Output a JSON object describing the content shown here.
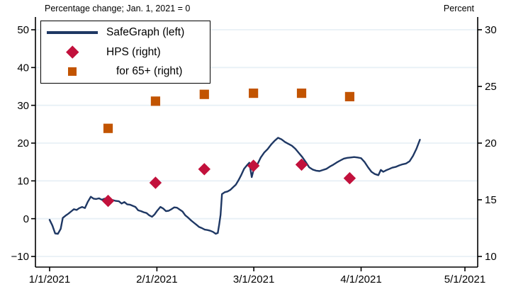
{
  "chart": {
    "title": "Percentage change; Jan. 1, 2021 = 0",
    "right_axis_title": "Percent",
    "colors": {
      "safegraph_line": "#1f3864",
      "hps_diamond": "#c2113c",
      "age65_square": "#c25400",
      "grid": "#e8f0f6",
      "axis": "#000000"
    },
    "legend": {
      "items": [
        {
          "label": "SafeGraph (left)",
          "marker": "line"
        },
        {
          "label": "HPS (right)",
          "marker": "diamond"
        },
        {
          "label": "for 65+ (right)",
          "marker": "square"
        }
      ]
    }
  },
  "chart_data": {
    "type": "line",
    "title": "Percentage change; Jan. 1, 2021 = 0",
    "right_axis_title": "Percent",
    "x_axis": {
      "tick_labels": [
        "1/1/2021",
        "2/1/2021",
        "3/1/2021",
        "4/1/2021",
        "5/1/2021"
      ],
      "tick_days": [
        0,
        31,
        59,
        90,
        120
      ],
      "note": "day index measured from Jan 1, 2021"
    },
    "left_axis": {
      "ticks": [
        50,
        40,
        30,
        20,
        10,
        0,
        -10
      ],
      "min": -10,
      "max": 50
    },
    "right_axis": {
      "ticks": [
        30,
        25,
        20,
        15,
        10
      ],
      "min": 10,
      "max": 30
    },
    "grid": true,
    "legend_position": "top-left-inside",
    "series": [
      {
        "name": "SafeGraph (left)",
        "axis": "left",
        "type": "line",
        "color_key": "safegraph_line",
        "points": [
          [
            0,
            -0.3
          ],
          [
            0.8,
            -1.8
          ],
          [
            1.6,
            -3.9
          ],
          [
            2.4,
            -4.0
          ],
          [
            3.2,
            -2.7
          ],
          [
            3.8,
            0.2
          ],
          [
            4.6,
            0.8
          ],
          [
            5.4,
            1.3
          ],
          [
            6.2,
            1.9
          ],
          [
            7,
            2.5
          ],
          [
            7.8,
            2.3
          ],
          [
            8.6,
            2.8
          ],
          [
            9.4,
            3.1
          ],
          [
            10.2,
            2.8
          ],
          [
            11,
            4.4
          ],
          [
            11.9,
            5.8
          ],
          [
            12.7,
            5.3
          ],
          [
            13.5,
            5.2
          ],
          [
            14.3,
            5.4
          ],
          [
            15.1,
            5.0
          ],
          [
            15.9,
            5.3
          ],
          [
            16.7,
            4.7
          ],
          [
            17.5,
            5.1
          ],
          [
            18.3,
            4.9
          ],
          [
            19.1,
            4.7
          ],
          [
            20,
            4.6
          ],
          [
            20.8,
            4.0
          ],
          [
            21.6,
            4.4
          ],
          [
            22.4,
            3.8
          ],
          [
            23.2,
            3.7
          ],
          [
            24,
            3.4
          ],
          [
            24.8,
            3.1
          ],
          [
            25.6,
            2.2
          ],
          [
            26.4,
            2.0
          ],
          [
            27.2,
            1.7
          ],
          [
            28,
            1.5
          ],
          [
            28.8,
            0.9
          ],
          [
            29.6,
            0.5
          ],
          [
            30.3,
            1.1
          ],
          [
            31,
            2.0
          ],
          [
            32,
            3.1
          ],
          [
            32.8,
            2.7
          ],
          [
            33.6,
            2.0
          ],
          [
            34.4,
            2.1
          ],
          [
            35.2,
            2.5
          ],
          [
            36,
            3.0
          ],
          [
            36.8,
            2.9
          ],
          [
            37.6,
            2.4
          ],
          [
            38.4,
            1.9
          ],
          [
            39.2,
            0.9
          ],
          [
            40,
            0.3
          ],
          [
            40.8,
            -0.4
          ],
          [
            41.6,
            -1.0
          ],
          [
            42.4,
            -1.6
          ],
          [
            43.2,
            -2.2
          ],
          [
            44,
            -2.5
          ],
          [
            44.8,
            -2.9
          ],
          [
            45.6,
            -3.0
          ],
          [
            46.4,
            -3.2
          ],
          [
            47.2,
            -3.5
          ],
          [
            48,
            -4.0
          ],
          [
            48.6,
            -3.8
          ],
          [
            49,
            -1.5
          ],
          [
            49.4,
            1.0
          ],
          [
            49.8,
            6.5
          ],
          [
            50.6,
            7.0
          ],
          [
            51.4,
            7.2
          ],
          [
            52.2,
            7.6
          ],
          [
            53,
            8.3
          ],
          [
            53.8,
            9.0
          ],
          [
            54.6,
            10.2
          ],
          [
            55.4,
            11.6
          ],
          [
            56.2,
            13.2
          ],
          [
            57,
            14.1
          ],
          [
            57.7,
            14.8
          ],
          [
            58.4,
            11.0
          ],
          [
            59.1,
            13.5
          ],
          [
            60,
            14.3
          ],
          [
            61,
            16.2
          ],
          [
            62,
            17.5
          ],
          [
            63,
            18.4
          ],
          [
            64,
            19.6
          ],
          [
            65,
            20.6
          ],
          [
            66,
            21.4
          ],
          [
            67,
            21.0
          ],
          [
            68,
            20.3
          ],
          [
            69,
            19.8
          ],
          [
            70,
            19.3
          ],
          [
            71,
            18.5
          ],
          [
            72,
            17.4
          ],
          [
            73,
            16.3
          ],
          [
            74,
            15.0
          ],
          [
            75,
            13.6
          ],
          [
            76,
            13.0
          ],
          [
            77,
            12.7
          ],
          [
            78,
            12.6
          ],
          [
            79,
            12.9
          ],
          [
            80,
            13.2
          ],
          [
            81,
            13.8
          ],
          [
            82,
            14.3
          ],
          [
            83,
            14.9
          ],
          [
            84,
            15.4
          ],
          [
            85,
            15.9
          ],
          [
            86,
            16.1
          ],
          [
            87,
            16.2
          ],
          [
            88,
            16.3
          ],
          [
            89,
            16.2
          ],
          [
            90,
            16.0
          ],
          [
            91,
            15.0
          ],
          [
            92,
            13.6
          ],
          [
            93,
            12.4
          ],
          [
            94,
            11.8
          ],
          [
            95,
            11.5
          ],
          [
            95.7,
            12.9
          ],
          [
            96.4,
            12.4
          ],
          [
            97.2,
            12.8
          ],
          [
            98,
            13.1
          ],
          [
            99,
            13.5
          ],
          [
            100,
            13.7
          ],
          [
            101,
            14.1
          ],
          [
            102,
            14.4
          ],
          [
            103,
            14.6
          ],
          [
            104,
            15.2
          ],
          [
            105,
            16.6
          ],
          [
            106,
            18.5
          ],
          [
            107,
            20.9
          ]
        ]
      },
      {
        "name": "HPS (right)",
        "axis": "right",
        "type": "scatter-diamond",
        "color_key": "hps_diamond",
        "dates": [
          "1/18",
          "2/1",
          "2/15",
          "3/1",
          "3/15",
          "3/29"
        ],
        "points": [
          [
            16.9,
            14.9
          ],
          [
            30.6,
            16.5
          ],
          [
            44.7,
            17.7
          ],
          [
            58.9,
            18.0
          ],
          [
            72.8,
            18.1
          ],
          [
            86.7,
            16.9
          ]
        ]
      },
      {
        "name": "for 65+ (right)",
        "axis": "right",
        "type": "scatter-square",
        "color_key": "age65_square",
        "dates": [
          "1/18",
          "2/1",
          "2/15",
          "3/1",
          "3/15",
          "3/29"
        ],
        "points": [
          [
            16.9,
            21.3
          ],
          [
            30.6,
            23.7
          ],
          [
            44.7,
            24.3
          ],
          [
            58.9,
            24.4
          ],
          [
            72.8,
            24.4
          ],
          [
            86.7,
            24.1
          ]
        ]
      }
    ]
  }
}
